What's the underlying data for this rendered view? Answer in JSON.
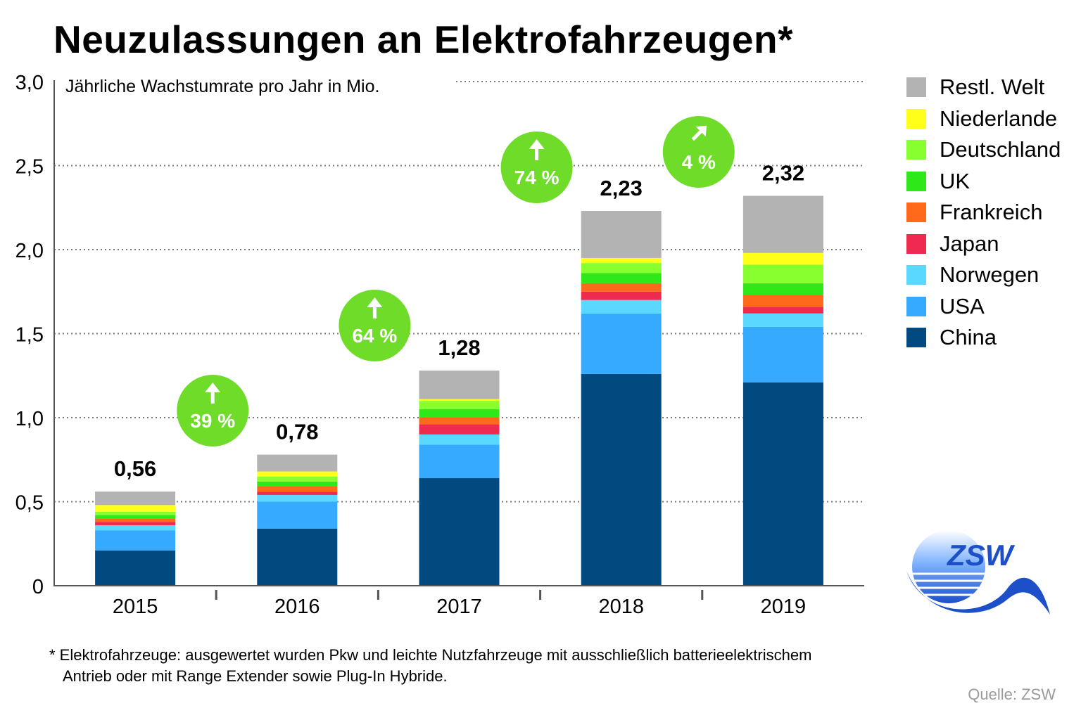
{
  "title": "Neuzulassungen an Elektrofahrzeugen*",
  "footnote": {
    "line1": "* Elektrofahrzeuge: ausgewertet wurden Pkw und leichte Nutzfahrzeuge mit ausschließlich batterieelektrischem",
    "line2": "Antrieb oder mit Range Extender sowie Plug-In Hybride."
  },
  "source": "Quelle: ZSW",
  "logo": {
    "text": "ZSW",
    "colors": {
      "primary": "#1d4fc8",
      "light": "#7fb3ff"
    }
  },
  "growth_badges": [
    {
      "label": "39 %",
      "arrow": "up-arrow"
    },
    {
      "label": "64 %",
      "arrow": "up-arrow"
    },
    {
      "label": "74 %",
      "arrow": "up-arrow"
    },
    {
      "label": "4 %",
      "arrow": "up-right-arrow"
    }
  ],
  "growth_badge_color": "#6fdc2a",
  "chart_data": {
    "type": "bar",
    "stacked": true,
    "ylabel": "Jährliche Wachstumrate pro Jahr in Mio.",
    "ylim": [
      0,
      3.0
    ],
    "yticks": [
      0,
      0.5,
      1.0,
      1.5,
      2.0,
      2.5,
      3.0
    ],
    "ytick_labels": [
      "0",
      "0,5",
      "1,0",
      "1,5",
      "2,0",
      "2,5",
      "3,0"
    ],
    "grid": true,
    "legend_position": "right",
    "categories": [
      "2015",
      "2016",
      "2017",
      "2018",
      "2019"
    ],
    "totals": [
      0.56,
      0.78,
      1.28,
      2.23,
      2.32
    ],
    "total_labels": [
      "0,56",
      "0,78",
      "1,28",
      "2,23",
      "2,32"
    ],
    "series": [
      {
        "name": "China",
        "color": "#004a80",
        "values": [
          0.21,
          0.34,
          0.64,
          1.26,
          1.21
        ]
      },
      {
        "name": "USA",
        "color": "#36aaff",
        "values": [
          0.12,
          0.16,
          0.2,
          0.36,
          0.33
        ]
      },
      {
        "name": "Norwegen",
        "color": "#5ad8ff",
        "values": [
          0.03,
          0.04,
          0.06,
          0.08,
          0.08
        ]
      },
      {
        "name": "Japan",
        "color": "#ee2a50",
        "values": [
          0.02,
          0.02,
          0.06,
          0.05,
          0.04
        ]
      },
      {
        "name": "Frankreich",
        "color": "#ff6a1a",
        "values": [
          0.02,
          0.03,
          0.04,
          0.05,
          0.07
        ]
      },
      {
        "name": "UK",
        "color": "#2ee81a",
        "values": [
          0.02,
          0.03,
          0.05,
          0.06,
          0.07
        ]
      },
      {
        "name": "Deutschland",
        "color": "#88ff2e",
        "values": [
          0.02,
          0.03,
          0.05,
          0.06,
          0.11
        ]
      },
      {
        "name": "Niederlande",
        "color": "#ffff1a",
        "values": [
          0.04,
          0.03,
          0.01,
          0.03,
          0.07
        ]
      },
      {
        "name": "Restl. Welt",
        "color": "#b3b3b3",
        "values": [
          0.08,
          0.1,
          0.17,
          0.28,
          0.34
        ]
      }
    ]
  }
}
